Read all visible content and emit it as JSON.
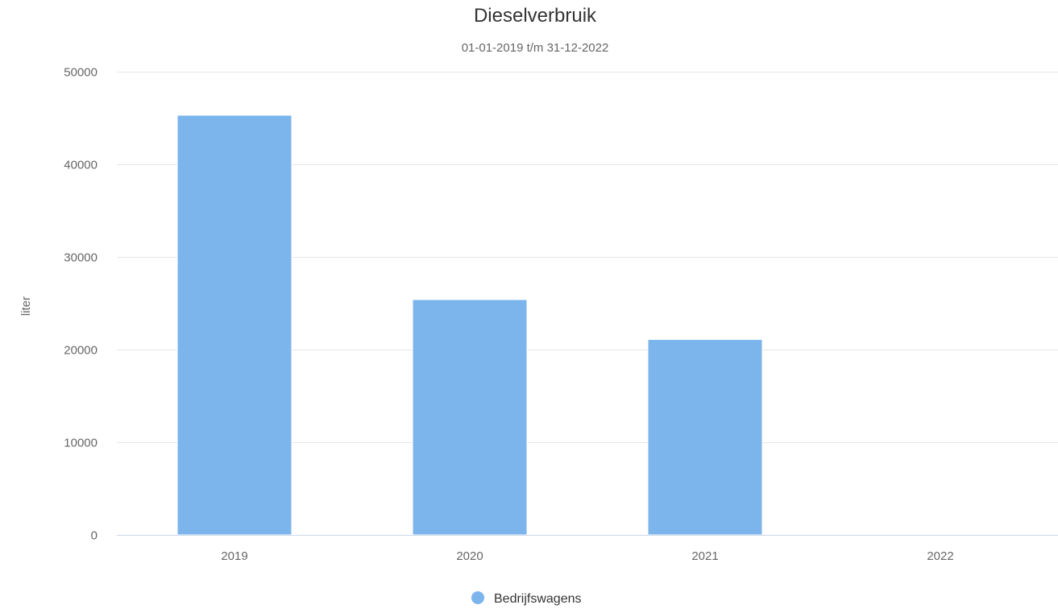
{
  "chart_data": {
    "type": "bar",
    "title": "Dieselverbruik",
    "subtitle": "01-01-2019 t/m 31-12-2022",
    "xlabel": "",
    "ylabel": "liter",
    "categories": [
      "2019",
      "2020",
      "2021",
      "2022"
    ],
    "series": [
      {
        "name": "Bedrijfswagens",
        "values": [
          45300,
          25400,
          21100,
          0
        ],
        "color": "#7cb5ec"
      }
    ],
    "ylim": [
      0,
      50000
    ],
    "yticks": [
      "0",
      "10000",
      "20000",
      "30000",
      "40000",
      "50000"
    ],
    "grid": true,
    "legend_position": "bottom-center"
  }
}
